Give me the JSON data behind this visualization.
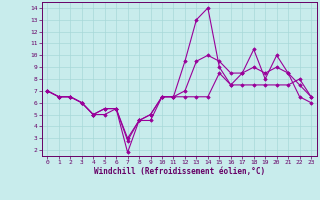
{
  "xlabel": "Windchill (Refroidissement éolien,°C)",
  "bg_color": "#c8ecec",
  "grid_color": "#a8d8d8",
  "line_color": "#990099",
  "xlim": [
    -0.5,
    23.5
  ],
  "ylim": [
    1.5,
    14.5
  ],
  "yticks": [
    2,
    3,
    4,
    5,
    6,
    7,
    8,
    9,
    10,
    11,
    12,
    13,
    14
  ],
  "xticks": [
    0,
    1,
    2,
    3,
    4,
    5,
    6,
    7,
    8,
    9,
    10,
    11,
    12,
    13,
    14,
    15,
    16,
    17,
    18,
    19,
    20,
    21,
    22,
    23
  ],
  "series": [
    [
      7.0,
      6.5,
      6.5,
      6.0,
      5.0,
      5.0,
      5.5,
      1.8,
      4.5,
      4.5,
      6.5,
      6.5,
      9.5,
      13.0,
      14.0,
      9.0,
      7.5,
      8.5,
      10.5,
      8.0,
      10.0,
      8.5,
      6.5,
      6.0
    ],
    [
      7.0,
      6.5,
      6.5,
      6.0,
      5.0,
      5.5,
      5.5,
      3.0,
      4.5,
      5.0,
      6.5,
      6.5,
      6.5,
      6.5,
      6.5,
      8.5,
      7.5,
      7.5,
      7.5,
      7.5,
      7.5,
      7.5,
      8.0,
      6.5
    ],
    [
      7.0,
      6.5,
      6.5,
      6.0,
      5.0,
      5.5,
      5.5,
      2.8,
      4.5,
      5.0,
      6.5,
      6.5,
      7.0,
      9.5,
      10.0,
      9.5,
      8.5,
      8.5,
      9.0,
      8.5,
      9.0,
      8.5,
      7.5,
      6.5
    ]
  ]
}
